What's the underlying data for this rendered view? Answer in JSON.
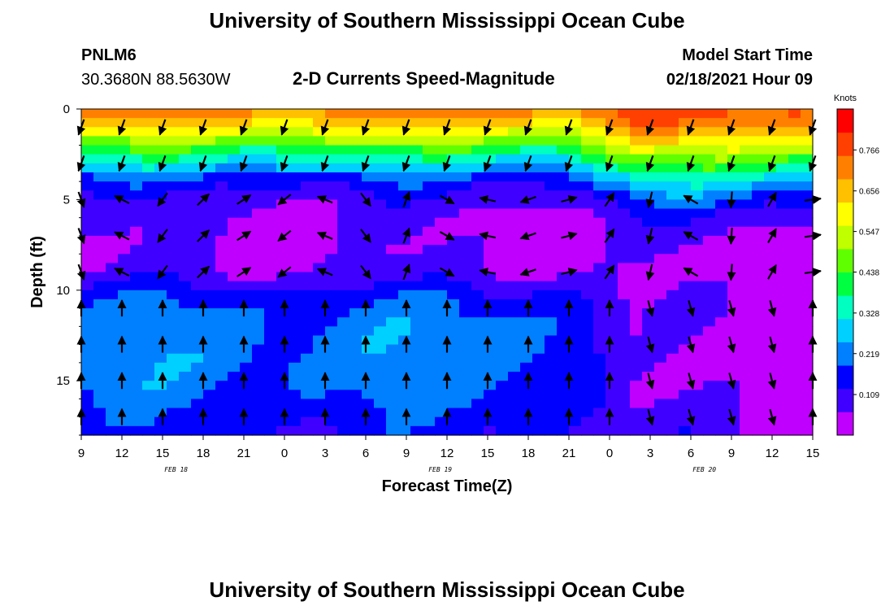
{
  "page": {
    "title_top": "University of Southern Mississippi Ocean Cube",
    "title_bottom": "University of Southern Mississippi Ocean Cube",
    "station_id": "PNLM6",
    "station_location": "30.3680N 88.5630W",
    "plot_title": "2-D Currents Speed-Magnitude",
    "model_label": "Model Start Time",
    "model_time": "02/18/2021 Hour 09"
  },
  "chart_data": {
    "type": "heatmap",
    "title": "2-D Currents Speed-Magnitude",
    "xlabel": "Forecast Time(Z)",
    "ylabel": "Depth (ft)",
    "x_ticks": [
      {
        "h": 0,
        "label": "9"
      },
      {
        "h": 3,
        "label": "12"
      },
      {
        "h": 6,
        "label": "15"
      },
      {
        "h": 9,
        "label": "18"
      },
      {
        "h": 12,
        "label": "21"
      },
      {
        "h": 15,
        "label": "0"
      },
      {
        "h": 18,
        "label": "3"
      },
      {
        "h": 21,
        "label": "6"
      },
      {
        "h": 24,
        "label": "9"
      },
      {
        "h": 27,
        "label": "12"
      },
      {
        "h": 30,
        "label": "15"
      },
      {
        "h": 33,
        "label": "18"
      },
      {
        "h": 36,
        "label": "21"
      },
      {
        "h": 39,
        "label": "0"
      },
      {
        "h": 42,
        "label": "3"
      },
      {
        "h": 45,
        "label": "6"
      },
      {
        "h": 48,
        "label": "9"
      },
      {
        "h": 51,
        "label": "12"
      },
      {
        "h": 54,
        "label": "15"
      }
    ],
    "date_labels": [
      {
        "h": 7,
        "label": "FEB 18"
      },
      {
        "h": 26.5,
        "label": "FEB 19"
      },
      {
        "h": 46,
        "label": "FEB 20"
      }
    ],
    "xlim": [
      0,
      54
    ],
    "y_ticks": [
      0,
      5,
      10,
      15
    ],
    "ylim": [
      0,
      18
    ],
    "colorbar": {
      "title": "Knots",
      "ticks": [
        "0.109",
        "0.219",
        "0.328",
        "0.438",
        "0.547",
        "0.656",
        "0.766"
      ],
      "tick_values": [
        0.109,
        0.219,
        0.328,
        0.438,
        0.547,
        0.656,
        0.766
      ],
      "range": [
        0,
        0.876
      ],
      "colors": [
        "#c000ff",
        "#4000ff",
        "#0000ff",
        "#0080ff",
        "#00d0ff",
        "#00ffc0",
        "#00ff40",
        "#60ff00",
        "#c0ff00",
        "#ffff00",
        "#ffc000",
        "#ff8000",
        "#ff4000",
        "#ff0000"
      ]
    },
    "speed_profile": {
      "depths": [
        0,
        1,
        2,
        3,
        4,
        5,
        6,
        7,
        8,
        9,
        10,
        11,
        12,
        13,
        14,
        15,
        16,
        17,
        18
      ],
      "day1_values": [
        0.74,
        0.62,
        0.45,
        0.3,
        0.16,
        0.09,
        0.06,
        0.05,
        0.05,
        0.07,
        0.14,
        0.19,
        0.21,
        0.22,
        0.22,
        0.21,
        0.19,
        0.16,
        0.14
      ],
      "day2_values": [
        0.78,
        0.7,
        0.58,
        0.44,
        0.3,
        0.18,
        0.1,
        0.06,
        0.04,
        0.03,
        0.04,
        0.05,
        0.04,
        0.03,
        0.03,
        0.04,
        0.05,
        0.07,
        0.08
      ]
    },
    "vectors": {
      "times": [
        0,
        3,
        6,
        9,
        12,
        15,
        18,
        21,
        24,
        27,
        30,
        33,
        36,
        39,
        42,
        45,
        48,
        51,
        54
      ],
      "depths": [
        1,
        3,
        5,
        7,
        9,
        11,
        13,
        15,
        17
      ],
      "note": "arrow direction in degrees (0 = up/north), length scaled to speed"
    }
  }
}
